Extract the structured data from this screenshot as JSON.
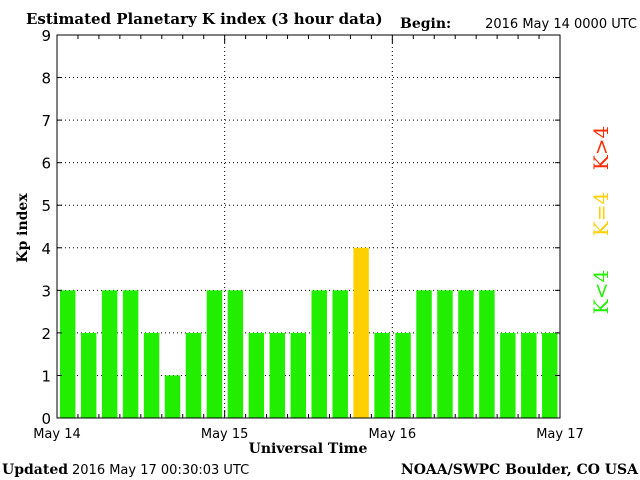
{
  "header": {
    "title": "Estimated Planetary K index (3 hour data)",
    "begin_label": "Begin:",
    "begin_value": "2016 May 14 0000 UTC"
  },
  "footer": {
    "updated_label": "Updated",
    "updated_value": "2016 May 17 00:30:03 UTC",
    "source": "NOAA/SWPC Boulder, CO USA"
  },
  "legend": {
    "low": {
      "text": "K<4",
      "color": "#22ee00"
    },
    "mid": {
      "text": "K=4",
      "color": "#ffd000"
    },
    "high": {
      "text": "K>4",
      "color": "#ff2a00"
    }
  },
  "chart_data": {
    "type": "bar",
    "xlabel": "Universal Time",
    "ylabel": "Kp index",
    "ylim": [
      0,
      9
    ],
    "yticks": [
      0,
      1,
      2,
      3,
      4,
      5,
      6,
      7,
      8,
      9
    ],
    "xtick_labels": [
      "May 14",
      "May 15",
      "May 16",
      "May 17"
    ],
    "bar_interval_hours": 3,
    "values": [
      3,
      2,
      3,
      3,
      2,
      1,
      2,
      3,
      3,
      2,
      2,
      2,
      3,
      3,
      4,
      2,
      2,
      3,
      3,
      3,
      3,
      2,
      2,
      2
    ],
    "grid": true,
    "colors": {
      "below4": "#22ee00",
      "equal4": "#ffd000",
      "above4": "#ff2a00"
    }
  }
}
